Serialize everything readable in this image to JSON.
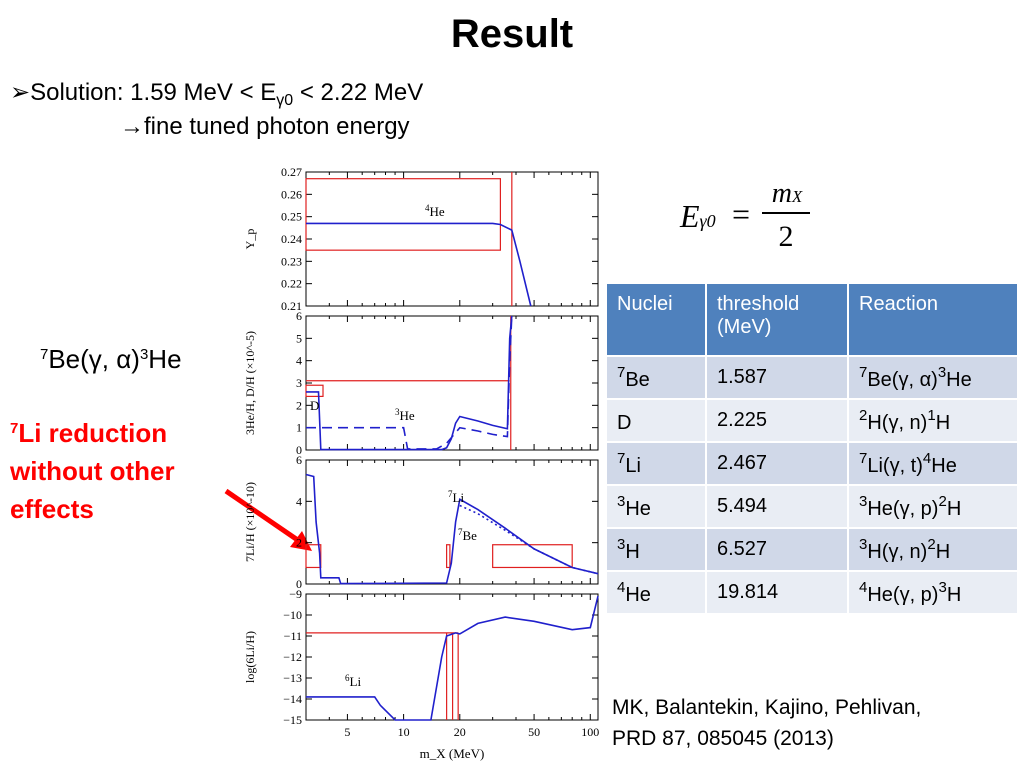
{
  "title": "Result",
  "bullet": {
    "marker": "➢",
    "prefix": "Solution:  1.59 MeV < E",
    "sub": "γ0",
    "suffix": " < 2.22 MeV"
  },
  "subline": {
    "arrow": "→",
    "text": "fine tuned photon energy"
  },
  "left_reaction": {
    "sup1": "7",
    "t1": "Be(γ, α)",
    "sup2": "3",
    "t2": "He"
  },
  "red_note": {
    "sup": "7",
    "line1": "Li reduction",
    "line2": "without other",
    "line3": "effects"
  },
  "formula": {
    "lhs": "E",
    "lhs_sub": "γ0",
    "eq": "=",
    "num": "m",
    "num_sub": "X",
    "den": "2"
  },
  "table": {
    "headers": [
      "Nuclei",
      "threshold (MeV)",
      "Reaction"
    ],
    "rows": [
      {
        "sup": "7",
        "nuc": "Be",
        "thr": "1.587",
        "r1": "7",
        "r2": "Be(γ, α)",
        "r3": "3",
        "r4": "He"
      },
      {
        "sup": "",
        "nuc": "D",
        "thr": "2.225",
        "r1": "2",
        "r2": "H(γ, n)",
        "r3": "1",
        "r4": "H"
      },
      {
        "sup": "7",
        "nuc": "Li",
        "thr": "2.467",
        "r1": "7",
        "r2": "Li(γ, t)",
        "r3": "4",
        "r4": "He"
      },
      {
        "sup": "3",
        "nuc": "He",
        "thr": "5.494",
        "r1": "3",
        "r2": "He(γ, p)",
        "r3": "2",
        "r4": "H"
      },
      {
        "sup": "3",
        "nuc": "H",
        "thr": "6.527",
        "r1": "3",
        "r2": "H(γ, n)",
        "r3": "2",
        "r4": "H"
      },
      {
        "sup": "4",
        "nuc": "He",
        "thr": "19.814",
        "r1": "4",
        "r2": "He(γ, p)",
        "r3": "3",
        "r4": "H"
      }
    ]
  },
  "citation": {
    "line1": "MK, Balantekin, Kajino, Pehlivan,",
    "line2": "PRD 87, 085045 (2013)"
  },
  "colors": {
    "model_line": "#2020cc",
    "constraint_box": "#e02020",
    "table_header": "#4f81bd",
    "note_red": "#ff0000"
  },
  "chart_data": [
    {
      "type": "line",
      "panel": "Yp",
      "ylabel": "Y_p",
      "annotation": "4He",
      "xscale": "log",
      "xlim": [
        3,
        110
      ],
      "ylim": [
        0.21,
        0.27
      ],
      "yticks": [
        "0.21",
        "0.22",
        "0.23",
        "0.24",
        "0.25",
        "0.26",
        "0.27"
      ],
      "series": [
        {
          "x": [
            3,
            20,
            30,
            33,
            38,
            42,
            48
          ],
          "y": [
            0.247,
            0.247,
            0.247,
            0.2465,
            0.244,
            0.23,
            0.209
          ]
        }
      ],
      "constraint_box": {
        "x": [
          3,
          33
        ],
        "y": [
          0.235,
          0.267
        ]
      },
      "constraint_vline_x": 38
    },
    {
      "type": "line",
      "panel": "3He/H, D/H",
      "ylabel": "3He/H, D/H (×10^-5)",
      "annotations": [
        "D",
        "3He"
      ],
      "xscale": "log",
      "xlim": [
        3,
        110
      ],
      "ylim": [
        0,
        6
      ],
      "yticks": [
        "0",
        "1",
        "2",
        "3",
        "4",
        "5",
        "6"
      ],
      "series": [
        {
          "style": "solid",
          "x": [
            3,
            3.5,
            3.6,
            16,
            17,
            18,
            19,
            20,
            25,
            30,
            36,
            37,
            38
          ],
          "y": [
            2.6,
            2.6,
            0.02,
            0.02,
            0.1,
            0.5,
            1.2,
            1.5,
            1.3,
            1.1,
            0.95,
            5.0,
            6.0
          ]
        },
        {
          "style": "dashed",
          "x": [
            3,
            10,
            10.5,
            15,
            17,
            20,
            25,
            30,
            36,
            37,
            38
          ],
          "y": [
            1.0,
            1.0,
            0.05,
            0.05,
            0.3,
            1.0,
            0.85,
            0.7,
            0.6,
            4.0,
            6.0
          ]
        }
      ],
      "constraint_boxes": [
        {
          "x": [
            3,
            3.7
          ],
          "y": [
            2.4,
            2.9
          ]
        },
        {
          "x": [
            3,
            37
          ],
          "y": [
            3.1,
            3.1
          ]
        }
      ],
      "constraint_vline_x": 37.5
    },
    {
      "type": "line",
      "panel": "7Li/H",
      "ylabel": "7Li/H (×10^-10)",
      "annotations": [
        "7Li",
        "7Be"
      ],
      "xscale": "log",
      "xlim": [
        3,
        110
      ],
      "ylim": [
        0,
        6
      ],
      "yticks": [
        "0",
        "2",
        "4",
        "6"
      ],
      "series": [
        {
          "style": "solid",
          "x": [
            3,
            3.3,
            3.4,
            3.55,
            3.6,
            4.5,
            4.6,
            17,
            18,
            19,
            20,
            25,
            35,
            50,
            80,
            110
          ],
          "y": [
            5.3,
            5.2,
            3.0,
            1.5,
            0.3,
            0.3,
            0.02,
            0.05,
            1.0,
            3.0,
            4.1,
            3.6,
            2.7,
            1.7,
            0.8,
            0.5
          ]
        },
        {
          "style": "dotted",
          "x": [
            20,
            25,
            35,
            50,
            80,
            110
          ],
          "y": [
            3.8,
            3.4,
            2.6,
            1.7,
            0.8,
            0.5
          ]
        }
      ],
      "constraint_boxes": [
        {
          "x": [
            3,
            3.6
          ],
          "y": [
            0.8,
            1.9
          ]
        },
        {
          "x": [
            17,
            17.7
          ],
          "y": [
            0.8,
            1.9
          ]
        },
        {
          "x": [
            30,
            80
          ],
          "y": [
            0.8,
            1.9
          ]
        }
      ]
    },
    {
      "type": "line",
      "panel": "log(6Li/H)",
      "ylabel": "log(6Li/H)",
      "annotation": "6Li",
      "xscale": "log",
      "xlim": [
        3,
        110
      ],
      "xlabel": "m_X (MeV)",
      "xticks": [
        "5",
        "10",
        "20",
        "50",
        "100"
      ],
      "ylim": [
        -15,
        -9
      ],
      "yticks": [
        "−15",
        "−14",
        "−13",
        "−12",
        "−11",
        "−10",
        "−9"
      ],
      "series": [
        {
          "x": [
            3,
            7,
            7.5,
            9,
            14,
            16,
            17,
            19,
            20,
            25,
            35,
            50,
            80,
            100,
            110
          ],
          "y": [
            -13.9,
            -13.9,
            -14.3,
            -15.1,
            -15.1,
            -12,
            -11,
            -10.85,
            -10.9,
            -10.4,
            -10.1,
            -10.3,
            -10.7,
            -10.6,
            -9.1
          ]
        }
      ],
      "constraint_hline_y": -10.85,
      "constraint_vlines_x": [
        17,
        18.3,
        19.6
      ]
    }
  ]
}
